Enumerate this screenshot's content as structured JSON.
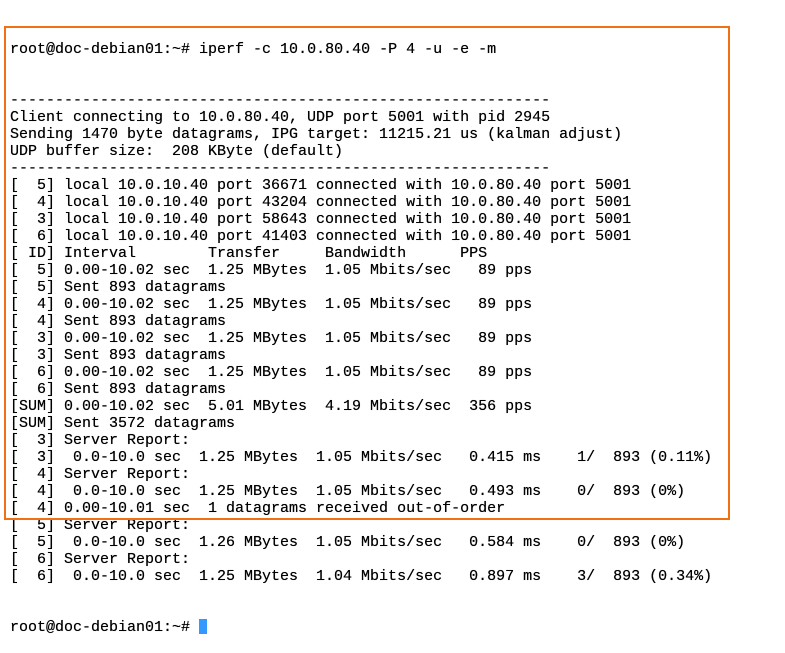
{
  "terminal": {
    "command_prompt": "root@doc-debian01:~#",
    "command": "iperf -c 10.0.80.40 -P 4 -u -e -m",
    "output_lines": [
      "------------------------------------------------------------",
      "Client connecting to 10.0.80.40, UDP port 5001 with pid 2945",
      "Sending 1470 byte datagrams, IPG target: 11215.21 us (kalman adjust)",
      "UDP buffer size:  208 KByte (default)",
      "------------------------------------------------------------",
      "[  5] local 10.0.10.40 port 36671 connected with 10.0.80.40 port 5001",
      "[  4] local 10.0.10.40 port 43204 connected with 10.0.80.40 port 5001",
      "[  3] local 10.0.10.40 port 58643 connected with 10.0.80.40 port 5001",
      "[  6] local 10.0.10.40 port 41403 connected with 10.0.80.40 port 5001",
      "[ ID] Interval        Transfer     Bandwidth      PPS",
      "[  5] 0.00-10.02 sec  1.25 MBytes  1.05 Mbits/sec   89 pps",
      "[  5] Sent 893 datagrams",
      "[  4] 0.00-10.02 sec  1.25 MBytes  1.05 Mbits/sec   89 pps",
      "[  4] Sent 893 datagrams",
      "[  3] 0.00-10.02 sec  1.25 MBytes  1.05 Mbits/sec   89 pps",
      "[  3] Sent 893 datagrams",
      "[  6] 0.00-10.02 sec  1.25 MBytes  1.05 Mbits/sec   89 pps",
      "[  6] Sent 893 datagrams",
      "[SUM] 0.00-10.02 sec  5.01 MBytes  4.19 Mbits/sec  356 pps",
      "[SUM] Sent 3572 datagrams",
      "[  3] Server Report:",
      "[  3]  0.0-10.0 sec  1.25 MBytes  1.05 Mbits/sec   0.415 ms    1/  893 (0.11%)",
      "[  4] Server Report:",
      "[  4]  0.0-10.0 sec  1.25 MBytes  1.05 Mbits/sec   0.493 ms    0/  893 (0%)",
      "[  4] 0.00-10.01 sec  1 datagrams received out-of-order",
      "[  5] Server Report:",
      "[  5]  0.0-10.0 sec  1.26 MBytes  1.05 Mbits/sec   0.584 ms    0/  893 (0%)",
      "[  6] Server Report:",
      "[  6]  0.0-10.0 sec  1.25 MBytes  1.04 Mbits/sec   0.897 ms    3/  893 (0.34%)"
    ],
    "final_prompt": "root@doc-debian01:~#"
  },
  "colors": {
    "highlight_border": "#f07014",
    "cursor": "#3399ff"
  }
}
